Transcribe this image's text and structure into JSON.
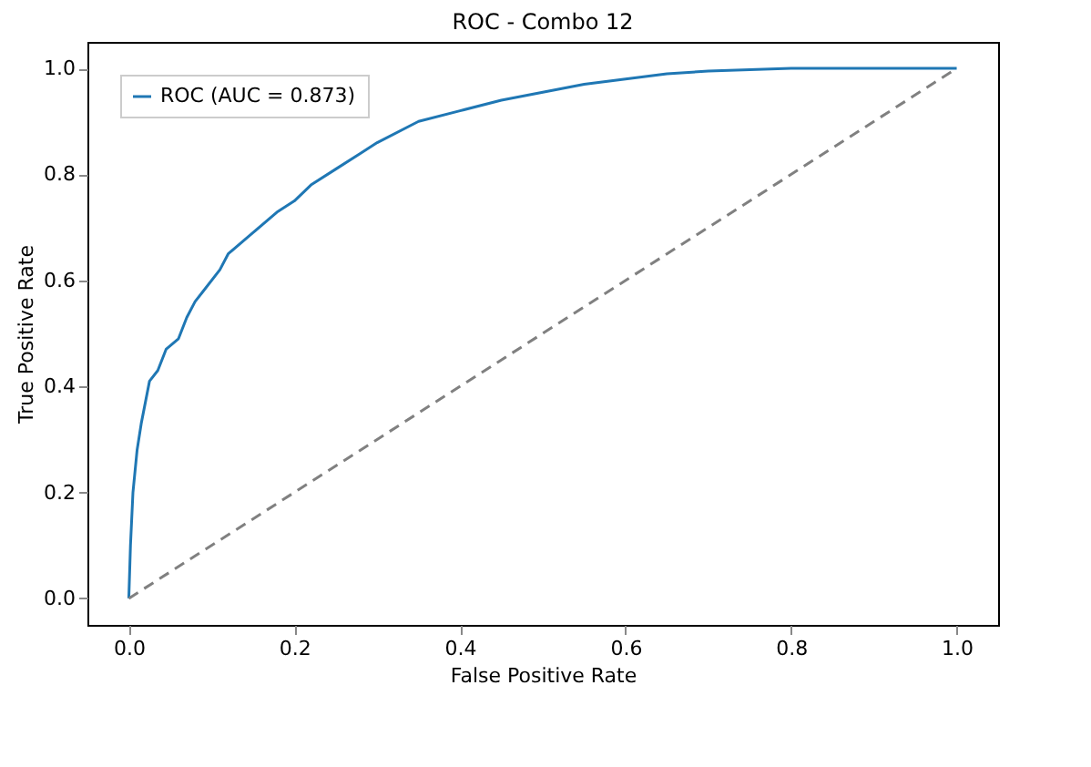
{
  "chart_data": {
    "type": "line",
    "title": "ROC - Combo 12",
    "xlabel": "False Positive Rate",
    "ylabel": "True Positive Rate",
    "xlim": [
      -0.05,
      1.05
    ],
    "ylim": [
      -0.05,
      1.05
    ],
    "xticks": [
      {
        "value": 0,
        "label": "0.0"
      },
      0.2,
      0.4,
      0.6,
      0.8,
      {
        "value": 1,
        "label": "1.0"
      }
    ],
    "yticks": [
      {
        "value": 0,
        "label": "0.0"
      },
      0.2,
      0.4,
      0.6,
      0.8,
      {
        "value": 1,
        "label": "1.0"
      }
    ],
    "legend": "top left",
    "grid": false,
    "series": [
      {
        "name": "ROC (AUC = 0.873)",
        "color": "#1f77b4",
        "line_style": "solid",
        "x": [
          0,
          0.002,
          0.005,
          0.01,
          0.015,
          0.025,
          0.035,
          0.045,
          0.06,
          0.07,
          0.08,
          0.09,
          0.11,
          0.12,
          0.15,
          0.18,
          0.2,
          0.22,
          0.25,
          0.28,
          0.3,
          0.35,
          0.4,
          0.45,
          0.5,
          0.55,
          0.6,
          0.65,
          0.7,
          0.8,
          1
        ],
        "values": [
          0,
          0.1,
          0.2,
          0.28,
          0.33,
          0.41,
          0.43,
          0.47,
          0.49,
          0.53,
          0.56,
          0.58,
          0.62,
          0.65,
          0.69,
          0.73,
          0.75,
          0.78,
          0.81,
          0.84,
          0.86,
          0.9,
          0.92,
          0.94,
          0.955,
          0.97,
          0.98,
          0.99,
          0.995,
          1,
          1
        ]
      },
      {
        "color": "#808080",
        "line_style": "dashed",
        "x": [
          0,
          1
        ],
        "values": [
          0,
          1
        ]
      }
    ]
  }
}
